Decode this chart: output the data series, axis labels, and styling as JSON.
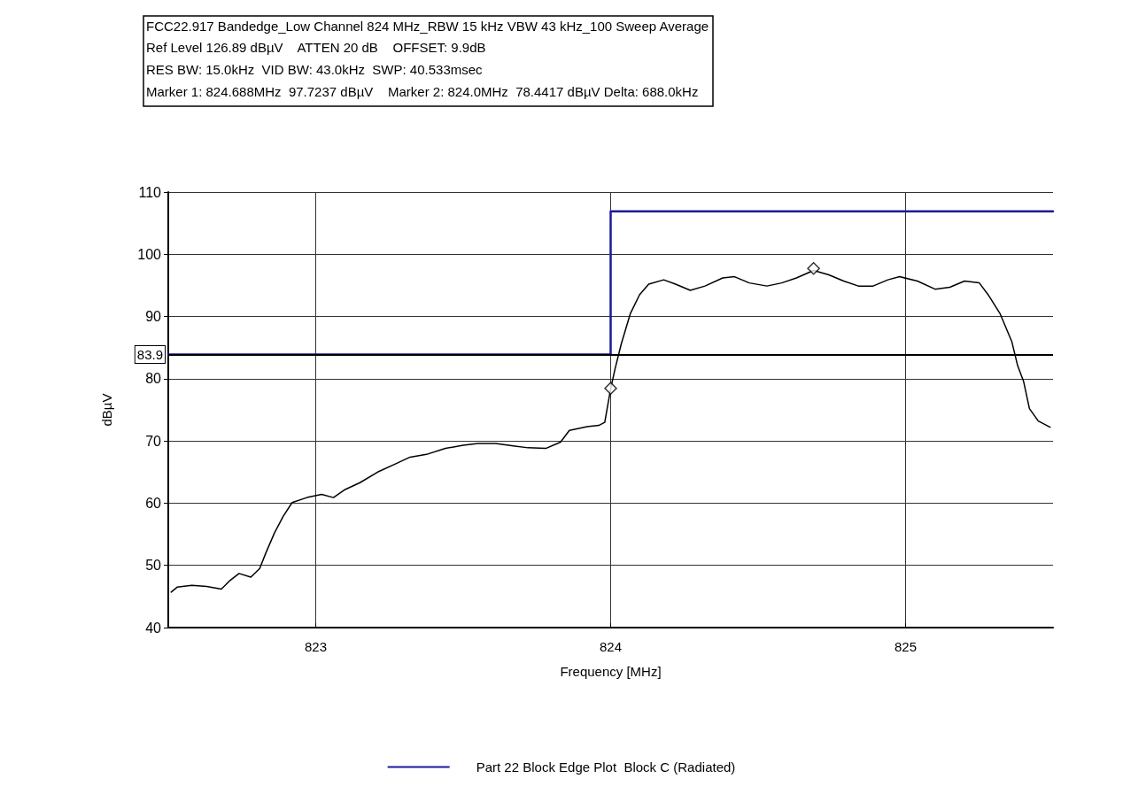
{
  "chart_data": {
    "type": "line",
    "title": "FCC22.917 Bandedge_Low Channel 824 MHz_RBW 15 kHz VBW 43 kHz_100 Sweep Average",
    "subtitle": "Ref Level 126.89 dBµV    ATTEN 20 dB    OFFSET: 9.9dB\nRES BW: 15.0kHz  VID BW: 43.0kHz  SWP: 40.533msec\nMarker 1: 824.688MHz  97.7237 dBµV    Marker 2: 824.0MHz  78.4417 dBµV Delta: 688.0kHz",
    "xlabel": "Frequency [MHz]",
    "ylabel": "dBµV",
    "xlim": [
      822.5,
      825.5
    ],
    "xticks": [
      823,
      824,
      825
    ],
    "ylim": [
      40,
      110
    ],
    "yticks": [
      40,
      50,
      60,
      70,
      80,
      90,
      100,
      110
    ],
    "grid": true,
    "legend": "bottom",
    "line_style": "solid",
    "marker": "none",
    "ref_lines": [
      {
        "axis": "y",
        "value": 83.9,
        "label": "83.9",
        "color": "#000000"
      }
    ],
    "series": [
      {
        "color": "#000000",
        "x": [
          822.51,
          822.53,
          822.58,
          822.63,
          822.68,
          822.71,
          822.74,
          822.78,
          822.81,
          822.83,
          822.86,
          822.89,
          822.92,
          822.97,
          823.02,
          823.06,
          823.1,
          823.15,
          823.21,
          823.27,
          823.32,
          823.38,
          823.44,
          823.5,
          823.55,
          823.61,
          823.67,
          823.72,
          823.78,
          823.83,
          823.86,
          823.92,
          823.96,
          823.98,
          824.0,
          824.015,
          824.036,
          824.067,
          824.098,
          824.129,
          824.18,
          824.22,
          824.27,
          824.32,
          824.38,
          824.42,
          824.47,
          824.53,
          824.58,
          824.63,
          824.688,
          824.74,
          824.79,
          824.84,
          824.89,
          824.94,
          824.98,
          825.04,
          825.1,
          825.15,
          825.2,
          825.25,
          825.28,
          825.32,
          825.36,
          825.38,
          825.4,
          825.42,
          825.45,
          825.49
        ],
        "values": [
          45.7,
          46.5,
          46.8,
          46.6,
          46.2,
          47.6,
          48.7,
          48.1,
          49.5,
          51.9,
          55.2,
          57.9,
          60.1,
          60.9,
          61.4,
          60.9,
          62.2,
          63.3,
          65.0,
          66.3,
          67.4,
          67.9,
          68.8,
          69.3,
          69.6,
          69.6,
          69.2,
          68.9,
          68.8,
          69.8,
          71.7,
          72.3,
          72.5,
          73.0,
          78.4,
          81.6,
          85.6,
          90.5,
          93.5,
          95.2,
          95.9,
          95.2,
          94.2,
          94.9,
          96.2,
          96.4,
          95.4,
          94.9,
          95.4,
          96.2,
          97.4,
          96.7,
          95.7,
          94.9,
          94.9,
          95.9,
          96.4,
          95.7,
          94.4,
          94.7,
          95.7,
          95.4,
          93.5,
          90.5,
          86.0,
          82.1,
          79.6,
          75.2,
          73.2,
          72.2
        ]
      },
      {
        "type": "line",
        "name": "Part 22 Block Edge Plot  Block C (Radiated)",
        "color": "#1a1a9c",
        "x": [
          822.5,
          824.0,
          824.0,
          825.5
        ],
        "values": [
          83.9,
          83.9,
          106.9,
          106.9
        ]
      },
      {
        "type": "scatter",
        "marker": "diamond",
        "color": "#000000",
        "x": [
          824.688,
          824.0
        ],
        "values": [
          97.7237,
          78.4417
        ]
      }
    ]
  }
}
